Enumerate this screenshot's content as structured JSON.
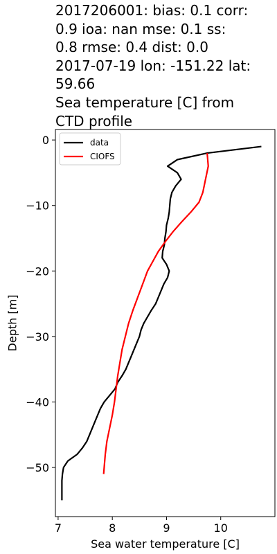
{
  "title_lines": [
    "2017206001: bias: 0.1  corr:",
    "0.9  ioa: nan  mse: 0.1  ss:",
    "0.8  rmse: 0.4  dist: 0.0",
    "2017-07-19 lon: -151.22 lat:",
    "59.66",
    "Sea temperature [C] from",
    "CTD profile"
  ],
  "chart_data": {
    "type": "line",
    "xlabel": "Sea water temperature [C]",
    "ylabel": "Depth [m]",
    "xlim": [
      6.95,
      11.0
    ],
    "ylim": [
      -57.5,
      1.6
    ],
    "xticks": [
      7,
      8,
      9,
      10
    ],
    "yticks": [
      0,
      -10,
      -20,
      -30,
      -40,
      -50
    ],
    "xtick_labels": [
      "7",
      "8",
      "9",
      "10"
    ],
    "ytick_labels": [
      "0",
      "−10",
      "−20",
      "−30",
      "−40",
      "−50"
    ],
    "grid": false,
    "legend_position": "upper-left",
    "series": [
      {
        "name": "data",
        "color": "#000000",
        "points": [
          [
            10.75,
            -1.0
          ],
          [
            9.75,
            -2.0
          ],
          [
            9.2,
            -3.0
          ],
          [
            9.02,
            -4.0
          ],
          [
            9.2,
            -5.0
          ],
          [
            9.27,
            -6.0
          ],
          [
            9.17,
            -7.0
          ],
          [
            9.1,
            -8.0
          ],
          [
            9.07,
            -9.0
          ],
          [
            9.06,
            -10.0
          ],
          [
            9.05,
            -11.0
          ],
          [
            9.03,
            -12.0
          ],
          [
            9.0,
            -13.0
          ],
          [
            8.99,
            -14.0
          ],
          [
            8.97,
            -15.0
          ],
          [
            8.96,
            -16.0
          ],
          [
            8.93,
            -17.0
          ],
          [
            8.92,
            -18.0
          ],
          [
            9.0,
            -19.0
          ],
          [
            9.05,
            -20.0
          ],
          [
            9.02,
            -21.0
          ],
          [
            8.95,
            -22.0
          ],
          [
            8.9,
            -23.0
          ],
          [
            8.85,
            -24.0
          ],
          [
            8.8,
            -25.0
          ],
          [
            8.72,
            -26.0
          ],
          [
            8.65,
            -27.0
          ],
          [
            8.58,
            -28.0
          ],
          [
            8.53,
            -29.0
          ],
          [
            8.5,
            -30.0
          ],
          [
            8.45,
            -31.0
          ],
          [
            8.4,
            -32.0
          ],
          [
            8.35,
            -33.0
          ],
          [
            8.3,
            -34.0
          ],
          [
            8.25,
            -35.0
          ],
          [
            8.18,
            -36.0
          ],
          [
            8.1,
            -37.0
          ],
          [
            8.05,
            -38.0
          ],
          [
            7.95,
            -39.0
          ],
          [
            7.85,
            -40.0
          ],
          [
            7.78,
            -41.0
          ],
          [
            7.73,
            -42.0
          ],
          [
            7.68,
            -43.0
          ],
          [
            7.63,
            -44.0
          ],
          [
            7.58,
            -45.0
          ],
          [
            7.53,
            -46.0
          ],
          [
            7.45,
            -47.0
          ],
          [
            7.35,
            -48.0
          ],
          [
            7.18,
            -49.0
          ],
          [
            7.1,
            -50.0
          ],
          [
            7.08,
            -51.0
          ],
          [
            7.07,
            -52.0
          ],
          [
            7.07,
            -53.0
          ],
          [
            7.07,
            -54.0
          ],
          [
            7.07,
            -55.0
          ]
        ]
      },
      {
        "name": "CIOFS",
        "color": "#ff0000",
        "points": [
          [
            9.75,
            -2.0
          ],
          [
            9.77,
            -4.0
          ],
          [
            9.72,
            -6.0
          ],
          [
            9.67,
            -8.0
          ],
          [
            9.6,
            -9.5
          ],
          [
            9.45,
            -11.0
          ],
          [
            9.28,
            -12.5
          ],
          [
            9.12,
            -14.0
          ],
          [
            8.98,
            -15.5
          ],
          [
            8.85,
            -17.0
          ],
          [
            8.75,
            -18.5
          ],
          [
            8.65,
            -20.0
          ],
          [
            8.56,
            -22.0
          ],
          [
            8.47,
            -24.0
          ],
          [
            8.38,
            -26.0
          ],
          [
            8.3,
            -28.0
          ],
          [
            8.24,
            -30.0
          ],
          [
            8.18,
            -32.0
          ],
          [
            8.14,
            -34.0
          ],
          [
            8.1,
            -36.0
          ],
          [
            8.07,
            -38.0
          ],
          [
            8.04,
            -40.0
          ],
          [
            8.0,
            -42.0
          ],
          [
            7.95,
            -44.0
          ],
          [
            7.9,
            -46.0
          ],
          [
            7.87,
            -48.0
          ],
          [
            7.85,
            -50.0
          ],
          [
            7.84,
            -51.0
          ]
        ]
      }
    ]
  }
}
